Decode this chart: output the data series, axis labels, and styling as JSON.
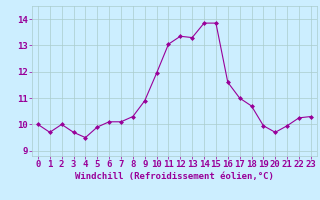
{
  "x": [
    0,
    1,
    2,
    3,
    4,
    5,
    6,
    7,
    8,
    9,
    10,
    11,
    12,
    13,
    14,
    15,
    16,
    17,
    18,
    19,
    20,
    21,
    22,
    23
  ],
  "y": [
    10.0,
    9.7,
    10.0,
    9.7,
    9.5,
    9.9,
    10.1,
    10.1,
    10.3,
    10.9,
    11.95,
    13.05,
    13.35,
    13.3,
    13.85,
    13.85,
    11.6,
    11.0,
    10.7,
    9.95,
    9.7,
    9.95,
    10.25,
    10.3
  ],
  "line_color": "#990099",
  "marker": "D",
  "marker_size": 2.0,
  "bg_color": "#cceeff",
  "grid_color": "#aacccc",
  "xlabel": "Windchill (Refroidissement éolien,°C)",
  "xlabel_color": "#990099",
  "ylim": [
    8.8,
    14.5
  ],
  "yticks": [
    9,
    10,
    11,
    12,
    13,
    14
  ],
  "xlim": [
    -0.5,
    23.5
  ],
  "xticks": [
    0,
    1,
    2,
    3,
    4,
    5,
    6,
    7,
    8,
    9,
    10,
    11,
    12,
    13,
    14,
    15,
    16,
    17,
    18,
    19,
    20,
    21,
    22,
    23
  ],
  "tick_fontsize": 6.5,
  "xlabel_fontsize": 6.5
}
